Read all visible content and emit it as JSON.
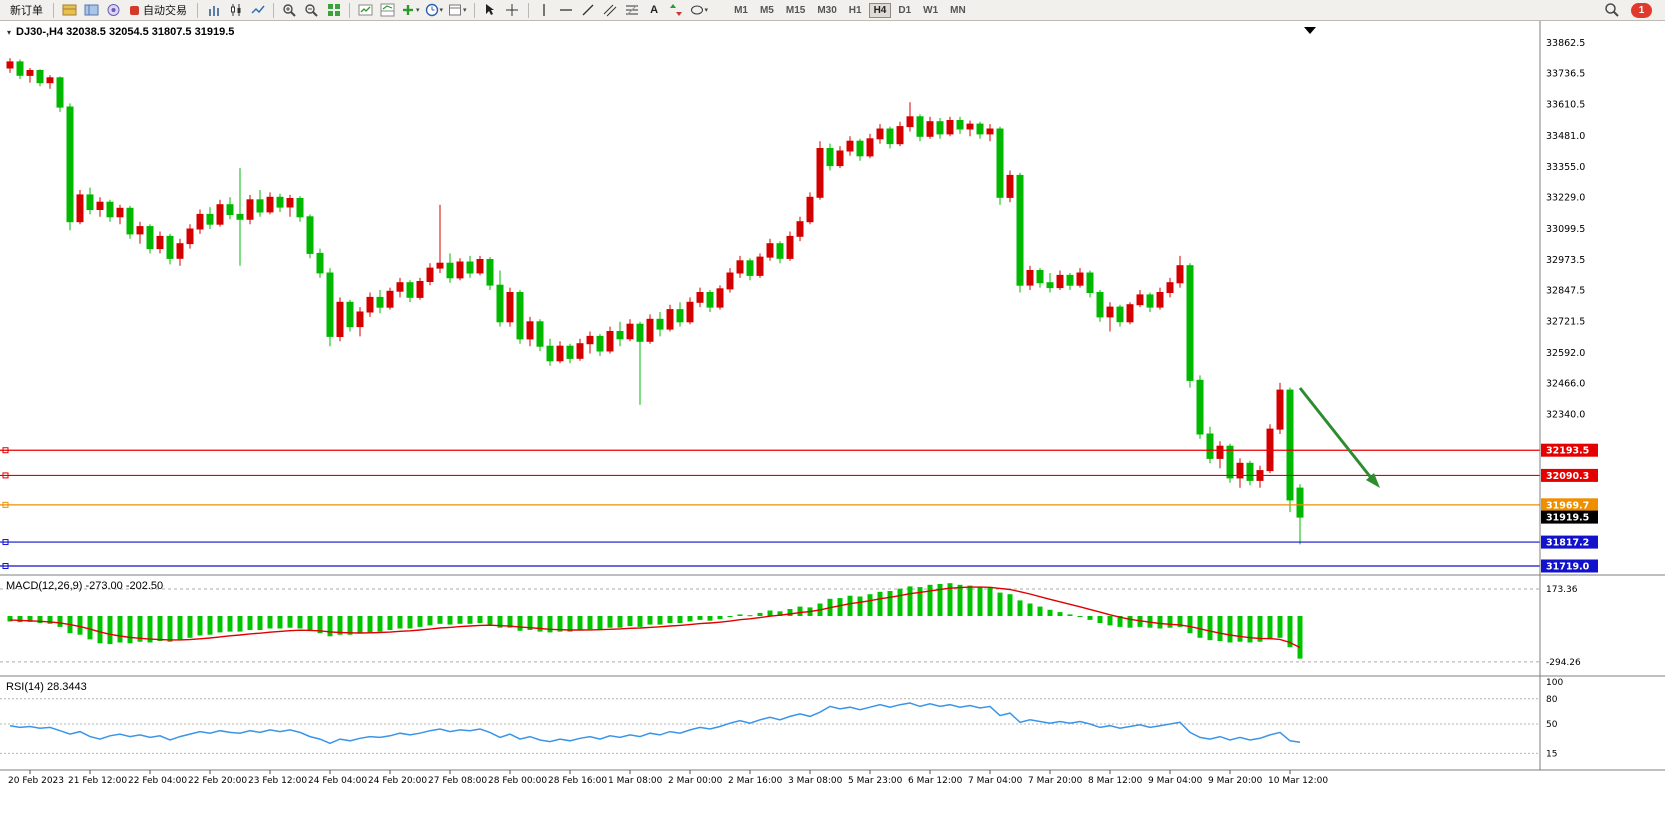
{
  "toolbar": {
    "new_order": "新订单",
    "auto_trading": "自动交易",
    "timeframes": [
      "M1",
      "M5",
      "M15",
      "M30",
      "H1",
      "H4",
      "D1",
      "W1",
      "MN"
    ],
    "active_timeframe": "H4",
    "notification_count": "1"
  },
  "chart_data": {
    "type": "candlestick",
    "title": "DJ30-,H4",
    "symbol_label": "DJ30-,H4 32038.5 32054.5 31807.5 31919.5",
    "ohlc_current": {
      "open": 32038.5,
      "high": 32054.5,
      "low": 31807.5,
      "close": 31919.5
    },
    "up_color": "#d40000",
    "down_color": "#00b800",
    "price_axis_ticks": [
      33862.5,
      33736.5,
      33610.5,
      33481.0,
      33355.0,
      33229.0,
      33099.5,
      32973.5,
      32847.5,
      32721.5,
      32592.0,
      32466.0,
      32340.0
    ],
    "time_labels": [
      "20 Feb 2023",
      "21 Feb 12:00",
      "22 Feb 04:00",
      "22 Feb 20:00",
      "23 Feb 12:00",
      "24 Feb 04:00",
      "24 Feb 20:00",
      "27 Feb 08:00",
      "28 Feb 00:00",
      "28 Feb 16:00",
      "1 Mar 08:00",
      "2 Mar 00:00",
      "2 Mar 16:00",
      "3 Mar 08:00",
      "5 Mar 23:00",
      "6 Mar 12:00",
      "7 Mar 04:00",
      "7 Mar 20:00",
      "8 Mar 12:00",
      "9 Mar 04:00",
      "9 Mar 20:00",
      "10 Mar 12:00"
    ],
    "candles": [
      [
        33760,
        33800,
        33740,
        33785
      ],
      [
        33785,
        33795,
        33715,
        33730
      ],
      [
        33730,
        33760,
        33700,
        33750
      ],
      [
        33750,
        33755,
        33685,
        33700
      ],
      [
        33700,
        33730,
        33675,
        33720
      ],
      [
        33720,
        33725,
        33580,
        33600
      ],
      [
        33600,
        33615,
        33095,
        33130
      ],
      [
        33130,
        33260,
        33120,
        33240
      ],
      [
        33240,
        33270,
        33160,
        33180
      ],
      [
        33180,
        33230,
        33150,
        33210
      ],
      [
        33210,
        33220,
        33130,
        33150
      ],
      [
        33150,
        33200,
        33120,
        33185
      ],
      [
        33185,
        33195,
        33060,
        33080
      ],
      [
        33080,
        33130,
        33040,
        33110
      ],
      [
        33110,
        33120,
        33000,
        33020
      ],
      [
        33020,
        33090,
        33000,
        33070
      ],
      [
        33070,
        33080,
        32955,
        32980
      ],
      [
        32980,
        33060,
        32950,
        33040
      ],
      [
        33040,
        33120,
        33020,
        33100
      ],
      [
        33100,
        33180,
        33080,
        33160
      ],
      [
        33160,
        33190,
        33100,
        33120
      ],
      [
        33120,
        33220,
        33110,
        33200
      ],
      [
        33200,
        33230,
        33140,
        33160
      ],
      [
        33160,
        33350,
        32950,
        33140
      ],
      [
        33140,
        33240,
        33120,
        33220
      ],
      [
        33220,
        33260,
        33150,
        33170
      ],
      [
        33170,
        33250,
        33160,
        33230
      ],
      [
        33230,
        33245,
        33170,
        33190
      ],
      [
        33190,
        33240,
        33150,
        33225
      ],
      [
        33225,
        33235,
        33130,
        33150
      ],
      [
        33150,
        33160,
        32980,
        33000
      ],
      [
        33000,
        33020,
        32900,
        32920
      ],
      [
        32920,
        32940,
        32620,
        32660
      ],
      [
        32660,
        32820,
        32640,
        32800
      ],
      [
        32800,
        32810,
        32680,
        32700
      ],
      [
        32700,
        32780,
        32660,
        32760
      ],
      [
        32760,
        32840,
        32740,
        32820
      ],
      [
        32820,
        32850,
        32755,
        32780
      ],
      [
        32780,
        32860,
        32770,
        32845
      ],
      [
        32845,
        32900,
        32820,
        32880
      ],
      [
        32880,
        32890,
        32800,
        32820
      ],
      [
        32820,
        32900,
        32810,
        32885
      ],
      [
        32885,
        32960,
        32870,
        32940
      ],
      [
        32940,
        33200,
        32920,
        32960
      ],
      [
        32960,
        33000,
        32880,
        32900
      ],
      [
        32900,
        32980,
        32890,
        32965
      ],
      [
        32965,
        32990,
        32900,
        32920
      ],
      [
        32920,
        32990,
        32910,
        32975
      ],
      [
        32975,
        32985,
        32850,
        32870
      ],
      [
        32870,
        32930,
        32700,
        32720
      ],
      [
        32720,
        32860,
        32700,
        32840
      ],
      [
        32840,
        32850,
        32630,
        32650
      ],
      [
        32650,
        32740,
        32620,
        32720
      ],
      [
        32720,
        32730,
        32600,
        32620
      ],
      [
        32620,
        32650,
        32540,
        32560
      ],
      [
        32560,
        32640,
        32550,
        32620
      ],
      [
        32620,
        32630,
        32550,
        32570
      ],
      [
        32570,
        32650,
        32560,
        32630
      ],
      [
        32630,
        32680,
        32590,
        32660
      ],
      [
        32660,
        32670,
        32580,
        32600
      ],
      [
        32600,
        32700,
        32590,
        32680
      ],
      [
        32680,
        32720,
        32620,
        32650
      ],
      [
        32650,
        32730,
        32640,
        32710
      ],
      [
        32710,
        32720,
        32380,
        32640
      ],
      [
        32640,
        32750,
        32630,
        32730
      ],
      [
        32730,
        32760,
        32660,
        32690
      ],
      [
        32690,
        32790,
        32680,
        32770
      ],
      [
        32770,
        32800,
        32700,
        32720
      ],
      [
        32720,
        32820,
        32710,
        32800
      ],
      [
        32800,
        32860,
        32780,
        32840
      ],
      [
        32840,
        32850,
        32760,
        32780
      ],
      [
        32780,
        32870,
        32770,
        32855
      ],
      [
        32855,
        32940,
        32840,
        32920
      ],
      [
        32920,
        32990,
        32900,
        32970
      ],
      [
        32970,
        32980,
        32890,
        32910
      ],
      [
        32910,
        33000,
        32900,
        32985
      ],
      [
        32985,
        33060,
        32970,
        33040
      ],
      [
        33040,
        33050,
        32960,
        32980
      ],
      [
        32980,
        33090,
        32970,
        33070
      ],
      [
        33070,
        33150,
        33050,
        33130
      ],
      [
        33130,
        33250,
        33120,
        33230
      ],
      [
        33230,
        33460,
        33220,
        33430
      ],
      [
        33430,
        33450,
        33340,
        33360
      ],
      [
        33360,
        33440,
        33350,
        33420
      ],
      [
        33420,
        33480,
        33400,
        33460
      ],
      [
        33460,
        33470,
        33380,
        33400
      ],
      [
        33400,
        33490,
        33390,
        33470
      ],
      [
        33470,
        33530,
        33450,
        33510
      ],
      [
        33510,
        33520,
        33430,
        33450
      ],
      [
        33450,
        33540,
        33440,
        33520
      ],
      [
        33520,
        33620,
        33500,
        33560
      ],
      [
        33560,
        33570,
        33460,
        33480
      ],
      [
        33480,
        33560,
        33470,
        33540
      ],
      [
        33540,
        33555,
        33470,
        33490
      ],
      [
        33490,
        33560,
        33480,
        33545
      ],
      [
        33545,
        33560,
        33490,
        33510
      ],
      [
        33510,
        33545,
        33480,
        33530
      ],
      [
        33530,
        33540,
        33470,
        33490
      ],
      [
        33490,
        33530,
        33460,
        33510
      ],
      [
        33510,
        33520,
        33200,
        33230
      ],
      [
        33230,
        33340,
        33210,
        33320
      ],
      [
        33320,
        33330,
        32840,
        32870
      ],
      [
        32870,
        32950,
        32850,
        32930
      ],
      [
        32930,
        32940,
        32860,
        32880
      ],
      [
        32880,
        32920,
        32840,
        32860
      ],
      [
        32860,
        32930,
        32850,
        32910
      ],
      [
        32910,
        32920,
        32850,
        32870
      ],
      [
        32870,
        32940,
        32860,
        32920
      ],
      [
        32920,
        32930,
        32820,
        32840
      ],
      [
        32840,
        32850,
        32720,
        32740
      ],
      [
        32740,
        32800,
        32680,
        32780
      ],
      [
        32780,
        32790,
        32700,
        32720
      ],
      [
        32720,
        32800,
        32710,
        32790
      ],
      [
        32790,
        32850,
        32780,
        32830
      ],
      [
        32830,
        32840,
        32760,
        32780
      ],
      [
        32780,
        32860,
        32770,
        32840
      ],
      [
        32840,
        32900,
        32820,
        32880
      ],
      [
        32880,
        32990,
        32860,
        32950
      ],
      [
        32950,
        32960,
        32450,
        32480
      ],
      [
        32480,
        32500,
        32240,
        32260
      ],
      [
        32260,
        32290,
        32140,
        32160
      ],
      [
        32160,
        32230,
        32120,
        32210
      ],
      [
        32210,
        32220,
        32060,
        32080
      ],
      [
        32080,
        32160,
        32040,
        32140
      ],
      [
        32140,
        32150,
        32050,
        32070
      ],
      [
        32070,
        32130,
        32040,
        32110
      ],
      [
        32110,
        32300,
        32100,
        32280
      ],
      [
        32280,
        32470,
        32260,
        32440
      ],
      [
        32440,
        32450,
        31940,
        31990
      ],
      [
        32038.5,
        32054.5,
        31807.5,
        31919.5
      ]
    ],
    "hlines": [
      {
        "price": 32193.5,
        "label": "32193.5",
        "color": "#e40000"
      },
      {
        "price": 32090.3,
        "label": "32090.3",
        "color": "#e40000"
      },
      {
        "price": 31969.7,
        "label": "31969.7",
        "color": "#ee8f00"
      },
      {
        "price": 31817.2,
        "label": "31817.2",
        "color": "#1212cc"
      },
      {
        "price": 31719.0,
        "label": "31719.0",
        "color": "#1212cc"
      }
    ],
    "current_price_tag": {
      "price": 31919.5,
      "label": "31919.5",
      "color": "#000000"
    },
    "annotation_arrow": {
      "description": "green arrow pointing down-right above price lines",
      "color": "#2e8b2e"
    },
    "indicators": {
      "macd": {
        "label": "MACD(12,26,9) -273.00 -202.50",
        "params": "12,26,9",
        "main_value": -273.0,
        "signal_value": -202.5,
        "axis_ticks": [
          173.36,
          -294.26
        ],
        "histogram_color": "#00c400",
        "signal_color": "#e00000",
        "histogram": [
          -35,
          -40,
          -38,
          -45,
          -50,
          -70,
          -110,
          -120,
          -150,
          -175,
          -180,
          -170,
          -175,
          -165,
          -170,
          -160,
          -165,
          -150,
          -140,
          -125,
          -120,
          -105,
          -100,
          -100,
          -90,
          -90,
          -80,
          -80,
          -75,
          -80,
          -95,
          -110,
          -130,
          -120,
          -120,
          -110,
          -105,
          -100,
          -90,
          -80,
          -80,
          -70,
          -60,
          -50,
          -55,
          -50,
          -50,
          -45,
          -55,
          -75,
          -75,
          -95,
          -90,
          -100,
          -105,
          -100,
          -100,
          -90,
          -85,
          -85,
          -75,
          -75,
          -65,
          -70,
          -55,
          -55,
          -45,
          -45,
          -35,
          -25,
          -30,
          -20,
          -5,
          10,
          5,
          20,
          35,
          30,
          45,
          60,
          55,
          80,
          110,
          115,
          130,
          125,
          140,
          155,
          160,
          175,
          190,
          185,
          200,
          205,
          210,
          200,
          195,
          185,
          180,
          150,
          140,
          100,
          80,
          60,
          40,
          25,
          10,
          -5,
          -25,
          -45,
          -60,
          -70,
          -75,
          -70,
          -75,
          -80,
          -75,
          -70,
          -110,
          -140,
          -155,
          -160,
          -170,
          -165,
          -170,
          -165,
          -150,
          -140,
          -200,
          -273
        ],
        "signal": [
          -25,
          -28,
          -31,
          -34,
          -38,
          -44,
          -55,
          -68,
          -84,
          -102,
          -117,
          -128,
          -137,
          -143,
          -148,
          -151,
          -153,
          -153,
          -151,
          -146,
          -141,
          -134,
          -127,
          -122,
          -115,
          -110,
          -104,
          -99,
          -94,
          -91,
          -92,
          -95,
          -102,
          -106,
          -108,
          -109,
          -108,
          -106,
          -103,
          -98,
          -95,
          -90,
          -84,
          -77,
          -73,
          -68,
          -64,
          -60,
          -59,
          -62,
          -65,
          -71,
          -75,
          -80,
          -85,
          -88,
          -90,
          -90,
          -89,
          -88,
          -85,
          -83,
          -79,
          -77,
          -73,
          -69,
          -64,
          -60,
          -55,
          -49,
          -45,
          -40,
          -33,
          -24,
          -18,
          -10,
          -1,
          5,
          13,
          22,
          29,
          39,
          53,
          66,
          79,
          88,
          98,
          110,
          120,
          131,
          143,
          151,
          161,
          170,
          178,
          182,
          185,
          185,
          184,
          177,
          170,
          156,
          141,
          124,
          107,
          91,
          75,
          59,
          42,
          25,
          8,
          -8,
          -21,
          -31,
          -40,
          -48,
          -53,
          -57,
          -67,
          -82,
          -97,
          -110,
          -122,
          -131,
          -139,
          -144,
          -145,
          -150,
          -170,
          -202.5
        ]
      },
      "rsi": {
        "label": "RSI(14) 28.3443",
        "period": 14,
        "value": 28.3443,
        "axis_ticks": [
          100,
          80,
          50,
          15
        ],
        "levels": [
          80,
          50,
          15
        ],
        "line_color": "#3a95e8",
        "values": [
          48,
          46,
          47,
          45,
          46,
          42,
          38,
          41,
          35,
          32,
          36,
          38,
          35,
          37,
          34,
          36,
          31,
          35,
          38,
          41,
          39,
          42,
          40,
          39,
          42,
          40,
          43,
          41,
          43,
          40,
          35,
          32,
          27,
          32,
          30,
          33,
          35,
          34,
          36,
          39,
          37,
          39,
          42,
          44,
          41,
          43,
          42,
          44,
          40,
          34,
          38,
          32,
          35,
          31,
          29,
          32,
          30,
          33,
          35,
          32,
          36,
          34,
          37,
          35,
          39,
          37,
          41,
          39,
          43,
          46,
          44,
          47,
          51,
          54,
          51,
          55,
          58,
          55,
          59,
          62,
          59,
          64,
          71,
          68,
          70,
          67,
          70,
          73,
          70,
          73,
          75,
          71,
          74,
          71,
          73,
          70,
          72,
          69,
          71,
          60,
          63,
          52,
          55,
          53,
          51,
          53,
          51,
          53,
          50,
          46,
          48,
          45,
          47,
          49,
          46,
          48,
          50,
          52,
          40,
          34,
          32,
          35,
          31,
          34,
          31,
          33,
          37,
          40,
          30,
          28.34
        ]
      }
    }
  }
}
